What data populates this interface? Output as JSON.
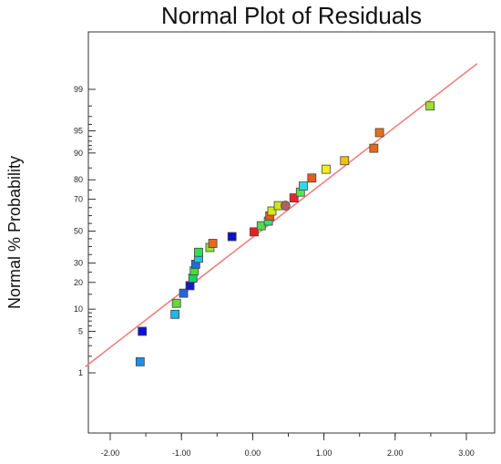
{
  "chart_data": {
    "type": "scatter",
    "title": "Normal Plot of Residuals",
    "xlabel": "",
    "ylabel": "Normal % Probability",
    "xlim": [
      -2.5,
      3.2
    ],
    "x_ticks": [
      -2.0,
      -1.0,
      0.0,
      1.0,
      2.0,
      3.0
    ],
    "x_tick_labels": [
      "-2.00",
      "-1.00",
      "0.00",
      "1.00",
      "2.00",
      "3.00"
    ],
    "y_scale": "normal-probability",
    "y_ticks": [
      1,
      5,
      10,
      20,
      30,
      50,
      70,
      80,
      90,
      95,
      99
    ],
    "y_tick_labels": [
      "1",
      "5",
      "10",
      "20",
      "30",
      "50",
      "70",
      "80",
      "90",
      "95",
      "99"
    ],
    "grid": false,
    "legend": "none",
    "reference_line": {
      "color": "#f08080",
      "points": [
        [
          -2.35,
          1.3
        ],
        [
          3.15,
          99.7
        ]
      ]
    },
    "points": [
      {
        "x": -1.58,
        "y": 1.6,
        "color": "#1e8fe6",
        "marker": "square"
      },
      {
        "x": -1.55,
        "y": 5.0,
        "color": "#1010d8",
        "marker": "square"
      },
      {
        "x": -1.09,
        "y": 8.6,
        "color": "#22b5e8",
        "marker": "square"
      },
      {
        "x": -1.07,
        "y": 11.8,
        "color": "#66d83a",
        "marker": "square"
      },
      {
        "x": -0.97,
        "y": 15.4,
        "color": "#2266e8",
        "marker": "square"
      },
      {
        "x": -0.88,
        "y": 18.5,
        "color": "#1818c8",
        "marker": "square"
      },
      {
        "x": -0.84,
        "y": 22.0,
        "color": "#22cc66",
        "marker": "square"
      },
      {
        "x": -0.82,
        "y": 25.7,
        "color": "#44dd44",
        "marker": "square"
      },
      {
        "x": -0.8,
        "y": 29.3,
        "color": "#1e6ae0",
        "marker": "square"
      },
      {
        "x": -0.76,
        "y": 32.8,
        "color": "#22c8d8",
        "marker": "square"
      },
      {
        "x": -0.76,
        "y": 36.4,
        "color": "#33dd55",
        "marker": "square"
      },
      {
        "x": -0.6,
        "y": 39.4,
        "color": "#88e833",
        "marker": "square"
      },
      {
        "x": -0.56,
        "y": 42.0,
        "color": "#e86818",
        "marker": "square"
      },
      {
        "x": -0.29,
        "y": 46.4,
        "color": "#1010d0",
        "marker": "square"
      },
      {
        "x": 0.02,
        "y": 49.5,
        "color": "#e82020",
        "marker": "square"
      },
      {
        "x": 0.12,
        "y": 53.5,
        "color": "#55dd44",
        "marker": "square"
      },
      {
        "x": 0.22,
        "y": 56.5,
        "color": "#33dd77",
        "marker": "square"
      },
      {
        "x": 0.24,
        "y": 59.8,
        "color": "#e85a18",
        "marker": "square"
      },
      {
        "x": 0.27,
        "y": 62.9,
        "color": "#d8e818",
        "marker": "square"
      },
      {
        "x": 0.36,
        "y": 66.2,
        "color": "#c8e818",
        "marker": "square"
      },
      {
        "x": 0.46,
        "y": 66.2,
        "color": "#b06060",
        "marker": "circle"
      },
      {
        "x": 0.58,
        "y": 70.7,
        "color": "#e82828",
        "marker": "square"
      },
      {
        "x": 0.67,
        "y": 73.9,
        "color": "#55e844",
        "marker": "square"
      },
      {
        "x": 0.71,
        "y": 77.0,
        "color": "#33d8e8",
        "marker": "square"
      },
      {
        "x": 0.83,
        "y": 80.8,
        "color": "#e85a18",
        "marker": "square"
      },
      {
        "x": 1.03,
        "y": 84.5,
        "color": "#f0f018",
        "marker": "square"
      },
      {
        "x": 1.29,
        "y": 87.6,
        "color": "#f0c018",
        "marker": "square"
      },
      {
        "x": 1.7,
        "y": 91.3,
        "color": "#e86818",
        "marker": "square"
      },
      {
        "x": 1.78,
        "y": 94.7,
        "color": "#e87018",
        "marker": "square"
      },
      {
        "x": 2.49,
        "y": 98.0,
        "color": "#9ae030",
        "marker": "square"
      }
    ]
  }
}
